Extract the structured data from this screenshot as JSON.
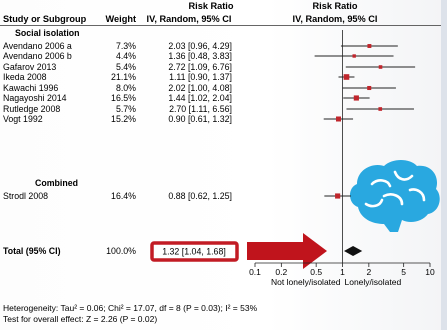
{
  "header": {
    "effect_title": "Risk Ratio",
    "study_col": "Study or Subgroup",
    "weight_col": "Weight",
    "ci_col": "IV, Random, 95% CI",
    "plot_title": "Risk Ratio",
    "plot_sub": "IV, Random, 95% CI"
  },
  "groups": [
    {
      "label": "Social isolation",
      "studies": [
        {
          "name": "Avendano 2006 a",
          "weight": "7.3%",
          "ci": "2.03 [0.96, 4.29]"
        },
        {
          "name": "Avendano 2006 b",
          "weight": "4.4%",
          "ci": "1.36 [0.48, 3.83]"
        },
        {
          "name": "Gafarov 2013",
          "weight": "5.4%",
          "ci": "2.72 [1.09, 6.76]"
        },
        {
          "name": "Ikeda 2008",
          "weight": "21.1%",
          "ci": "1.11 [0.90, 1.37]"
        },
        {
          "name": "Kawachi 1996",
          "weight": "8.0%",
          "ci": "2.02 [1.00, 4.08]"
        },
        {
          "name": "Nagayoshi 2014",
          "weight": "16.5%",
          "ci": "1.44 [1.02, 2.04]"
        },
        {
          "name": "Rutledge 2008",
          "weight": "5.7%",
          "ci": "2.70 [1.11, 6.56]"
        },
        {
          "name": "Vogt 1992",
          "weight": "15.2%",
          "ci": "0.90 [0.61, 1.32]"
        }
      ]
    },
    {
      "label": "Combined",
      "studies": [
        {
          "name": "Strodl 2008",
          "weight": "16.4%",
          "ci": "0.88 [0.62, 1.25]"
        }
      ]
    }
  ],
  "total": {
    "label": "Total (95% CI)",
    "weight": "100.0%",
    "ci": "1.32 [1.04, 1.68]"
  },
  "footer": {
    "heterogeneity": "Heterogeneity: Tau² = 0.06; Chi² = 17.07, df = 8 (P = 0.03); I² = 53%",
    "overall": "Test for overall effect: Z = 2.26 (P = 0.02)"
  },
  "colors": {
    "marker": "#c0262c",
    "highlight": "#c21b24",
    "arrow": "#c0141c",
    "brain": "#29a8e0"
  },
  "chart_data": {
    "type": "forest",
    "x_scale": "log",
    "xlim": [
      0.1,
      10
    ],
    "reference_line": 1,
    "ticks": [
      "0.1",
      "0.2",
      "0.5",
      "1",
      "2",
      "5",
      "10"
    ],
    "xlabel_left": "Not lonely/isolated",
    "xlabel_right": "Lonely/isolated",
    "studies": [
      {
        "name": "Avendano 2006 a",
        "rr": 2.03,
        "lo": 0.96,
        "hi": 4.29,
        "weight": 7.3
      },
      {
        "name": "Avendano 2006 b",
        "rr": 1.36,
        "lo": 0.48,
        "hi": 3.83,
        "weight": 4.4
      },
      {
        "name": "Gafarov 2013",
        "rr": 2.72,
        "lo": 1.09,
        "hi": 6.76,
        "weight": 5.4
      },
      {
        "name": "Ikeda 2008",
        "rr": 1.11,
        "lo": 0.9,
        "hi": 1.37,
        "weight": 21.1
      },
      {
        "name": "Kawachi 1996",
        "rr": 2.02,
        "lo": 1.0,
        "hi": 4.08,
        "weight": 8.0
      },
      {
        "name": "Nagayoshi 2014",
        "rr": 1.44,
        "lo": 1.02,
        "hi": 2.04,
        "weight": 16.5
      },
      {
        "name": "Rutledge 2008",
        "rr": 2.7,
        "lo": 1.11,
        "hi": 6.56,
        "weight": 5.7
      },
      {
        "name": "Vogt 1992",
        "rr": 0.9,
        "lo": 0.61,
        "hi": 1.32,
        "weight": 15.2
      },
      {
        "name": "Strodl 2008",
        "rr": 0.88,
        "lo": 0.62,
        "hi": 1.25,
        "weight": 16.4
      }
    ],
    "total": {
      "rr": 1.32,
      "lo": 1.04,
      "hi": 1.68
    }
  }
}
